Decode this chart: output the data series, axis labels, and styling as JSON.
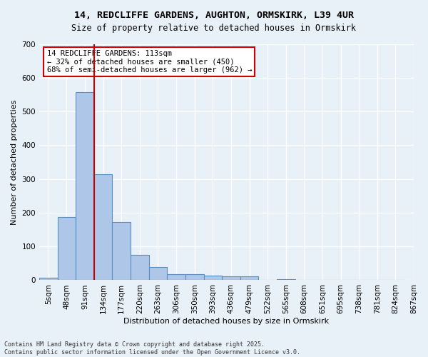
{
  "title": "14, REDCLIFFE GARDENS, AUGHTON, ORMSKIRK, L39 4UR",
  "subtitle": "Size of property relative to detached houses in Ormskirk",
  "xlabel": "Distribution of detached houses by size in Ormskirk",
  "ylabel": "Number of detached properties",
  "bar_values": [
    8,
    188,
    557,
    315,
    173,
    76,
    40,
    18,
    18,
    13,
    11,
    11,
    0,
    4,
    0,
    0,
    0,
    0,
    0,
    0
  ],
  "bin_labels": [
    "5sqm",
    "48sqm",
    "91sqm",
    "134sqm",
    "177sqm",
    "220sqm",
    "263sqm",
    "306sqm",
    "350sqm",
    "393sqm",
    "436sqm",
    "479sqm",
    "522sqm",
    "565sqm",
    "608sqm",
    "651sqm",
    "695sqm",
    "738sqm",
    "781sqm",
    "824sqm"
  ],
  "bar_color": "#aec6e8",
  "bar_edge_color": "#5a8fc2",
  "background_color": "#e8f0f8",
  "grid_color": "#ffffff",
  "vline_x_index": 2,
  "vline_color": "#cc0000",
  "annotation_text": "14 REDCLIFFE GARDENS: 113sqm\n← 32% of detached houses are smaller (450)\n68% of semi-detached houses are larger (962) →",
  "annotation_box_color": "#ffffff",
  "annotation_box_edge_color": "#cc0000",
  "footer_line1": "Contains HM Land Registry data © Crown copyright and database right 2025.",
  "footer_line2": "Contains public sector information licensed under the Open Government Licence v3.0.",
  "ylim": [
    0,
    700
  ],
  "yticks": [
    0,
    100,
    200,
    300,
    400,
    500,
    600,
    700
  ],
  "extra_xtick_label": "867sqm"
}
